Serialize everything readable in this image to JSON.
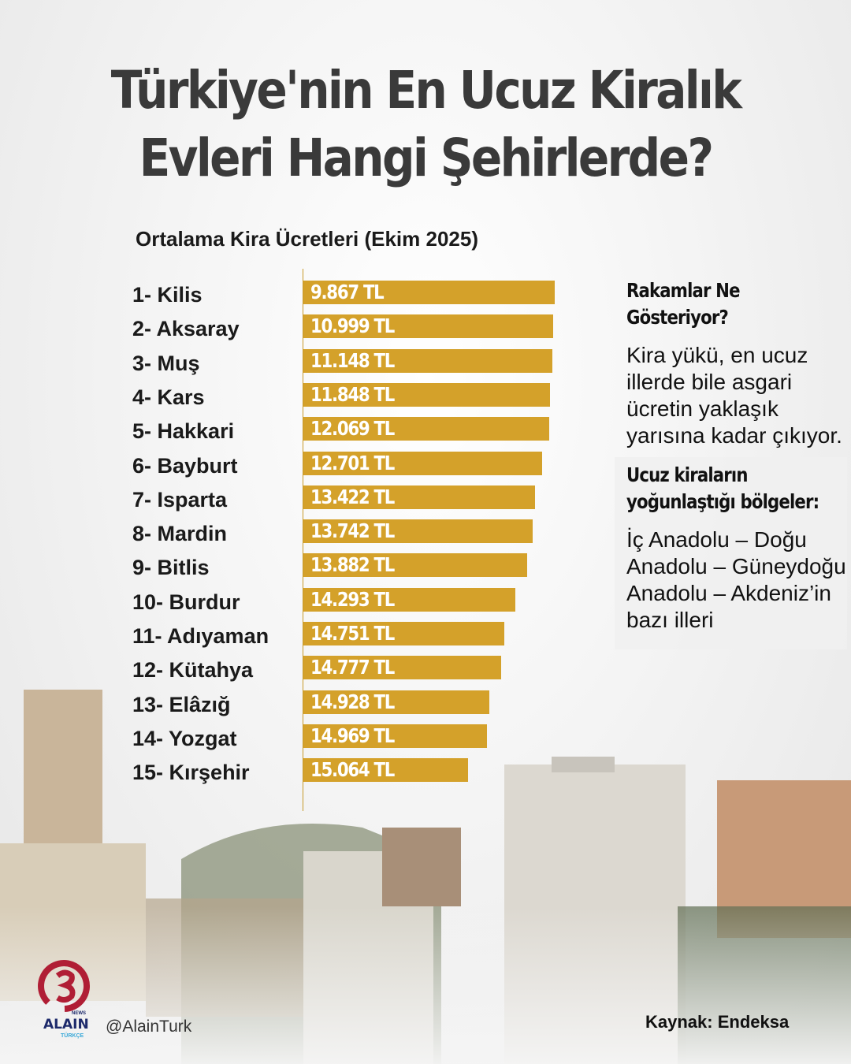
{
  "title_line1": "Türkiye'nin En Ucuz Kiralık",
  "title_line2": "Evleri Hangi Şehirlerde?",
  "chart_data": {
    "type": "bar",
    "orientation": "horizontal",
    "title": "Ortalama Kira Ücretleri (Ekim 2025)",
    "categories": [
      "1- Kilis",
      "2- Aksaray",
      "3- Muş",
      "4- Kars",
      "5- Hakkari",
      "6- Bayburt",
      "7- Isparta",
      "8- Mardin",
      "9- Bitlis",
      "10- Burdur",
      "11- Adıyaman",
      "12- Kütahya",
      "13- Elâzığ",
      "14- Yozgat",
      "15- Kırşehir"
    ],
    "values": [
      9867,
      10999,
      11148,
      11848,
      12069,
      12701,
      13422,
      13742,
      13882,
      14293,
      14751,
      14777,
      14928,
      14969,
      15064
    ],
    "value_labels": [
      "9.867 TL",
      "10.999 TL",
      "11.148 TL",
      "11.848 TL",
      "12.069 TL",
      "12.701 TL",
      "13.422 TL",
      "13.742 TL",
      "13.882 TL",
      "14.293 TL",
      "14.751 TL",
      "14.777 TL",
      "14.928 TL",
      "14.969 TL",
      "15.064 TL"
    ],
    "bar_color": "#D4A12A"
  },
  "side": {
    "h1": "Rakamlar Ne Gösteriyor?",
    "p1": "Kira yükü, en ucuz illerde bile asgari ücretin yaklaşık yarısına kadar çıkıyor.",
    "h2": "Ucuz kiraların yoğunlaştığı bölgeler:",
    "p2": "İç Anadolu – Doğu Anadolu – Güneydoğu Anadolu – Akdeniz’in bazı illeri"
  },
  "footer": {
    "brand": "ALAIN",
    "brand_news": "NEWS",
    "brand_sub": "TÜRKÇE",
    "handle": "@AlainTurk",
    "source": "Kaynak: Endeksa"
  },
  "colors": {
    "logo": "#B01E35",
    "title": "#3a3a3a"
  }
}
